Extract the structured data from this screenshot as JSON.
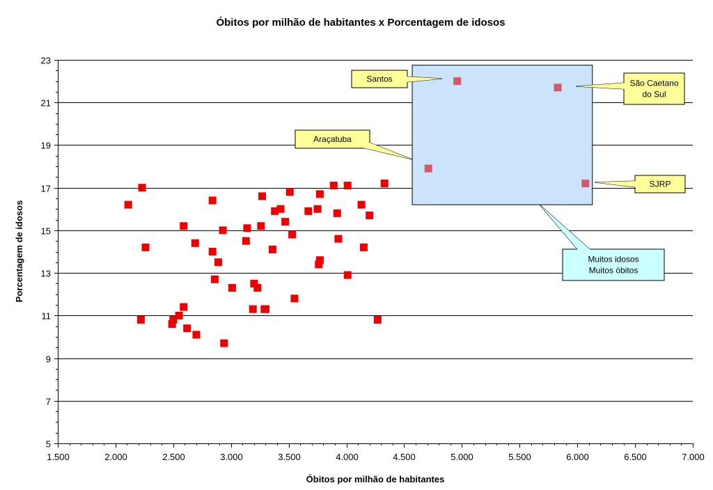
{
  "chart_data": {
    "type": "scatter",
    "title": "Óbitos por milhão de habitantes x Porcentagem de idosos",
    "xlabel": "Óbitos por milhão de habitantes",
    "ylabel": "Porcentagem de idosos",
    "xlim": [
      1500,
      7000
    ],
    "ylim": [
      5,
      23
    ],
    "x_ticks": [
      1500,
      2000,
      2500,
      3000,
      3500,
      4000,
      4500,
      5000,
      5500,
      6000,
      6500,
      7000
    ],
    "x_tick_labels": [
      "1.500",
      "2.000",
      "2.500",
      "3.000",
      "3.500",
      "4.000",
      "4.500",
      "5.000",
      "5.500",
      "6.000",
      "6.500",
      "7.000"
    ],
    "y_ticks": [
      5,
      7,
      9,
      11,
      13,
      15,
      17,
      19,
      21,
      23
    ],
    "y_tick_labels": [
      "5",
      "7",
      "9",
      "11",
      "13",
      "15",
      "17",
      "19",
      "21",
      "23"
    ],
    "grid": "horizontal",
    "colors": {
      "points": "#ee0000",
      "highlighted_points": "#d35a6e",
      "highlight_box": "#cce4fb",
      "callout_yellow": "#ffff99",
      "callout_cyan": "#ccffff"
    },
    "points": [
      {
        "x": 2110,
        "y": 16.2
      },
      {
        "x": 2230,
        "y": 17.0
      },
      {
        "x": 2260,
        "y": 14.2
      },
      {
        "x": 2220,
        "y": 10.8
      },
      {
        "x": 2490,
        "y": 10.6
      },
      {
        "x": 2500,
        "y": 10.8
      },
      {
        "x": 2550,
        "y": 11.0
      },
      {
        "x": 2590,
        "y": 11.4
      },
      {
        "x": 2590,
        "y": 15.2
      },
      {
        "x": 2620,
        "y": 10.4
      },
      {
        "x": 2690,
        "y": 14.4
      },
      {
        "x": 2700,
        "y": 10.1
      },
      {
        "x": 2840,
        "y": 16.4
      },
      {
        "x": 2840,
        "y": 14.0
      },
      {
        "x": 2860,
        "y": 12.7
      },
      {
        "x": 2890,
        "y": 13.5
      },
      {
        "x": 2930,
        "y": 15.0
      },
      {
        "x": 2940,
        "y": 9.7
      },
      {
        "x": 3010,
        "y": 12.3
      },
      {
        "x": 3130,
        "y": 14.5
      },
      {
        "x": 3140,
        "y": 15.1
      },
      {
        "x": 3190,
        "y": 11.3
      },
      {
        "x": 3200,
        "y": 12.5
      },
      {
        "x": 3230,
        "y": 12.3
      },
      {
        "x": 3260,
        "y": 15.2
      },
      {
        "x": 3270,
        "y": 16.6
      },
      {
        "x": 3290,
        "y": 11.3
      },
      {
        "x": 3300,
        "y": 11.3
      },
      {
        "x": 3360,
        "y": 14.1
      },
      {
        "x": 3380,
        "y": 15.9
      },
      {
        "x": 3430,
        "y": 16.0
      },
      {
        "x": 3470,
        "y": 15.4
      },
      {
        "x": 3510,
        "y": 16.8
      },
      {
        "x": 3530,
        "y": 14.8
      },
      {
        "x": 3550,
        "y": 11.8
      },
      {
        "x": 3670,
        "y": 15.9
      },
      {
        "x": 3750,
        "y": 16.0
      },
      {
        "x": 3760,
        "y": 13.4
      },
      {
        "x": 3770,
        "y": 13.6
      },
      {
        "x": 3770,
        "y": 16.7
      },
      {
        "x": 3890,
        "y": 17.1
      },
      {
        "x": 3920,
        "y": 15.8
      },
      {
        "x": 3930,
        "y": 14.6
      },
      {
        "x": 4010,
        "y": 17.1
      },
      {
        "x": 4010,
        "y": 12.9
      },
      {
        "x": 4130,
        "y": 16.2
      },
      {
        "x": 4150,
        "y": 14.2
      },
      {
        "x": 4200,
        "y": 15.7
      },
      {
        "x": 4270,
        "y": 10.8
      },
      {
        "x": 4330,
        "y": 17.2
      }
    ],
    "highlighted_points": [
      {
        "label": "Santos",
        "x": 4960,
        "y": 22.0
      },
      {
        "label": "São Caetano do Sul",
        "x": 5830,
        "y": 21.7
      },
      {
        "label": "Araçatuba",
        "x": 4710,
        "y": 17.9
      },
      {
        "label": "SJRP",
        "x": 6070,
        "y": 17.2
      }
    ],
    "annotations": {
      "santos": "Santos",
      "sao_caetano_line1": "São Caetano",
      "sao_caetano_line2": "do Sul",
      "aracatuba": "Araçatuba",
      "sjrp": "SJRP",
      "box_line1": "Muitos idosos",
      "box_line2": "Muitos óbitos"
    }
  }
}
